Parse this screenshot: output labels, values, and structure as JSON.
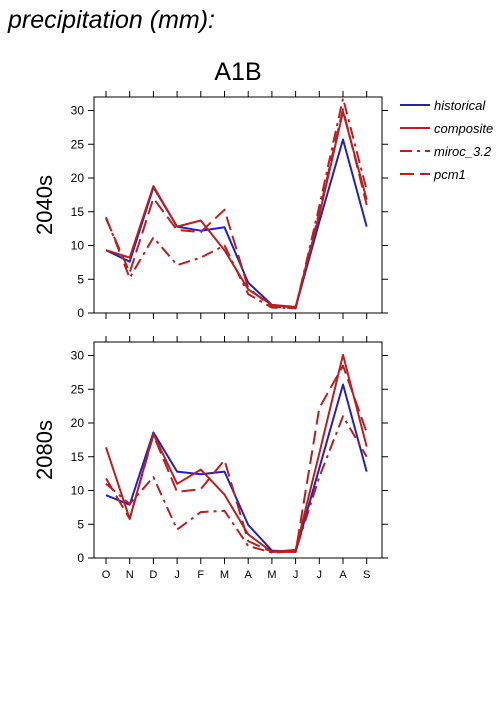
{
  "header": {
    "title": "precipitation (mm):"
  },
  "colors": {
    "historical": "#2222bb",
    "projection": "#bb1e1e",
    "axis": "#000000"
  },
  "chart_data": {
    "type": "line",
    "title": "A1B",
    "categories": [
      "O",
      "N",
      "D",
      "J",
      "F",
      "M",
      "A",
      "M",
      "J",
      "J",
      "A",
      "S"
    ],
    "ylim": [
      0,
      32
    ],
    "yticks": [
      0,
      5,
      10,
      15,
      20,
      25,
      30
    ],
    "legend_position": "top-right",
    "legend": [
      {
        "name": "historical",
        "style": "solid",
        "color": "#2222bb"
      },
      {
        "name": "composite",
        "style": "solid",
        "color": "#bb1e1e"
      },
      {
        "name": "miroc_3.2",
        "style": "dashdot",
        "color": "#bb1e1e"
      },
      {
        "name": "pcm1",
        "style": "dashed",
        "color": "#bb1e1e"
      }
    ],
    "panels": [
      {
        "ylabel": "2040s",
        "series": [
          {
            "name": "historical",
            "values": [
              9.3,
              7.6,
              18.6,
              12.8,
              12.2,
              12.7,
              4.5,
              1.2,
              0.8,
              13.5,
              25.7,
              12.8
            ]
          },
          {
            "name": "composite",
            "values": [
              9.3,
              8.2,
              18.8,
              12.8,
              13.7,
              9.3,
              3.5,
              1.2,
              0.9,
              14.5,
              29.8,
              16.8
            ]
          },
          {
            "name": "miroc_3.2",
            "values": [
              14.2,
              5.2,
              11.2,
              7.1,
              8.2,
              10.0,
              2.8,
              0.8,
              0.7,
              15.8,
              31.8,
              18.2
            ]
          },
          {
            "name": "pcm1",
            "values": [
              14.0,
              6.0,
              17.0,
              12.3,
              12.0,
              15.3,
              3.7,
              0.9,
              0.7,
              15.0,
              30.2,
              16.0
            ]
          }
        ]
      },
      {
        "ylabel": "2080s",
        "series": [
          {
            "name": "historical",
            "values": [
              9.3,
              7.9,
              18.6,
              12.8,
              12.4,
              12.8,
              4.9,
              1.1,
              0.9,
              13.3,
              25.7,
              12.8
            ]
          },
          {
            "name": "composite",
            "values": [
              16.4,
              5.8,
              18.4,
              11.0,
              13.1,
              9.4,
              3.5,
              0.9,
              1.2,
              15.5,
              30.1,
              16.5
            ]
          },
          {
            "name": "miroc_3.2",
            "values": [
              11.0,
              8.0,
              12.0,
              4.2,
              6.8,
              7.0,
              1.8,
              0.8,
              1.0,
              12.0,
              21.0,
              15.0
            ]
          },
          {
            "name": "pcm1",
            "values": [
              11.8,
              5.8,
              18.2,
              9.8,
              10.2,
              14.5,
              2.5,
              0.9,
              0.9,
              22.2,
              28.5,
              18.6
            ]
          }
        ]
      }
    ]
  }
}
